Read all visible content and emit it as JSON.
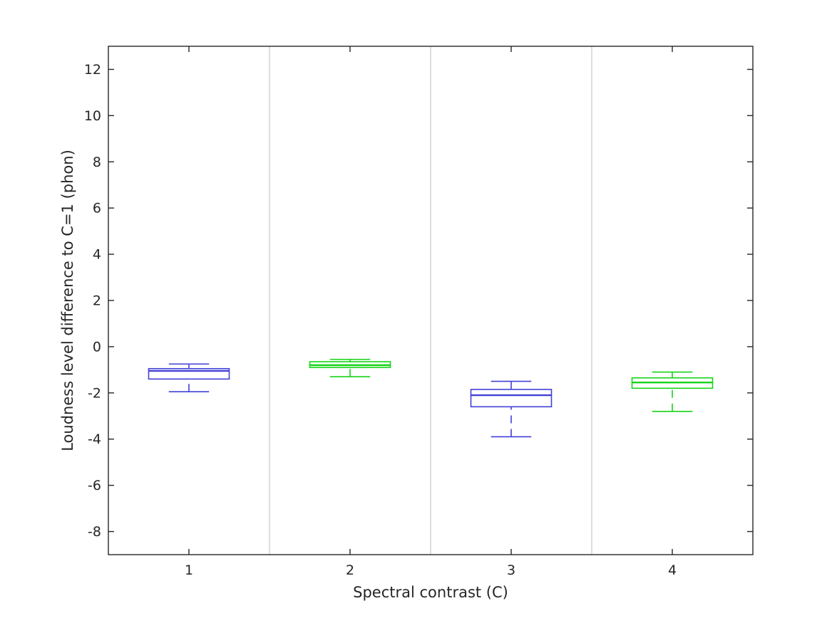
{
  "chart_data": {
    "type": "boxplot",
    "title": "",
    "xlabel": "Spectral contrast (C)",
    "ylabel": "Loudness level difference to C=1 (phon)",
    "categories": [
      "1",
      "2",
      "3",
      "4"
    ],
    "x_positions": [
      1,
      2,
      3,
      4
    ],
    "xlim": [
      0.5,
      4.5
    ],
    "ylim": [
      -9,
      13
    ],
    "yticks": [
      -8,
      -6,
      -4,
      -2,
      0,
      2,
      4,
      6,
      8,
      10,
      12
    ],
    "grid": false,
    "legend": "none",
    "separators_x": [
      1.5,
      2.5,
      3.5
    ],
    "box_width": 0.5,
    "cap_width": 0.25,
    "whisker_style": "dashed",
    "colors": {
      "blue": "#4240d6",
      "green": "#17d417",
      "axis": "#262626",
      "separator": "#d6d6d6",
      "background": "#ffffff"
    },
    "series": [
      {
        "category": "1",
        "color": "blue",
        "whisker_low": -1.95,
        "q1": -1.4,
        "median": -1.05,
        "q3": -0.95,
        "whisker_high": -0.75
      },
      {
        "category": "2",
        "color": "green",
        "whisker_low": -1.3,
        "q1": -0.9,
        "median": -0.8,
        "q3": -0.65,
        "whisker_high": -0.55
      },
      {
        "category": "3",
        "color": "blue",
        "whisker_low": -3.9,
        "q1": -2.6,
        "median": -2.1,
        "q3": -1.85,
        "whisker_high": -1.5
      },
      {
        "category": "4",
        "color": "green",
        "whisker_low": -2.8,
        "q1": -1.8,
        "median": -1.55,
        "q3": -1.35,
        "whisker_high": -1.1
      }
    ]
  }
}
